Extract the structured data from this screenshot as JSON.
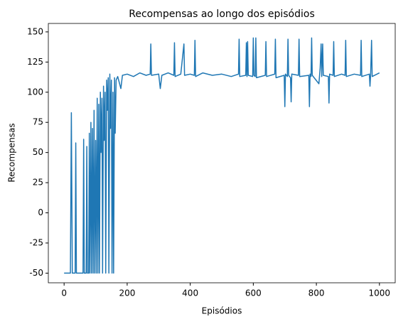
{
  "chart_data": {
    "type": "line",
    "title": "Recompensas ao longo dos episódios",
    "x_label": "Episódios",
    "y_label": "Recompensas",
    "color": "#1f77b4",
    "x": [
      0,
      20,
      23,
      26,
      35,
      37,
      39,
      60,
      62,
      64,
      70,
      72,
      74,
      78,
      80,
      82,
      85,
      87,
      90,
      92,
      95,
      97,
      100,
      102,
      105,
      107,
      110,
      112,
      115,
      117,
      120,
      122,
      125,
      127,
      130,
      132,
      135,
      137,
      140,
      142,
      145,
      147,
      150,
      152,
      155,
      157,
      160,
      162,
      165,
      170,
      180,
      185,
      200,
      220,
      240,
      260,
      273,
      275,
      277,
      300,
      305,
      310,
      330,
      348,
      350,
      352,
      370,
      380,
      382,
      400,
      413,
      415,
      417,
      440,
      470,
      500,
      530,
      553,
      555,
      557,
      576,
      578,
      580,
      582,
      584,
      598,
      600,
      602,
      606,
      608,
      610,
      638,
      640,
      642,
      668,
      670,
      672,
      698,
      700,
      702,
      708,
      710,
      712,
      718,
      720,
      722,
      743,
      745,
      747,
      776,
      778,
      780,
      783,
      785,
      787,
      808,
      812,
      815,
      817,
      820,
      822,
      838,
      840,
      842,
      853,
      855,
      857,
      880,
      891,
      893,
      895,
      920,
      940,
      942,
      944,
      968,
      970,
      972,
      975,
      977,
      1000
    ],
    "values": [
      -50,
      -50,
      83,
      -50,
      -50,
      58,
      -50,
      -50,
      61,
      -50,
      -50,
      55,
      -50,
      -50,
      66,
      -50,
      75,
      -50,
      70,
      -50,
      85,
      -50,
      60,
      -50,
      95,
      -50,
      90,
      -50,
      100,
      50,
      95,
      -50,
      105,
      60,
      100,
      -50,
      110,
      85,
      112,
      -50,
      115,
      70,
      110,
      -50,
      100,
      -50,
      112,
      66,
      110,
      113,
      103,
      114,
      115,
      113,
      116,
      114,
      115,
      140,
      114,
      115,
      103,
      114,
      116,
      114,
      141,
      113,
      115,
      140,
      114,
      115,
      114,
      143,
      113,
      116,
      114,
      115,
      113,
      115,
      144,
      113,
      114,
      141,
      113,
      142,
      114,
      113,
      145,
      114,
      113,
      145,
      112,
      114,
      142,
      113,
      115,
      144,
      112,
      114,
      88,
      115,
      113,
      144,
      114,
      112,
      92,
      115,
      114,
      144,
      113,
      114,
      88,
      115,
      113,
      145,
      114,
      107,
      120,
      140,
      113,
      140,
      114,
      113,
      91,
      115,
      114,
      142,
      113,
      115,
      114,
      143,
      113,
      115,
      114,
      143,
      113,
      115,
      105,
      114,
      143,
      113,
      116
    ],
    "xlim": [
      -50,
      1050
    ],
    "ylim": [
      -58,
      157
    ],
    "xticks": [
      0,
      200,
      400,
      600,
      800,
      1000
    ],
    "yticks": [
      -50,
      -25,
      0,
      25,
      50,
      75,
      100,
      125,
      150
    ]
  }
}
